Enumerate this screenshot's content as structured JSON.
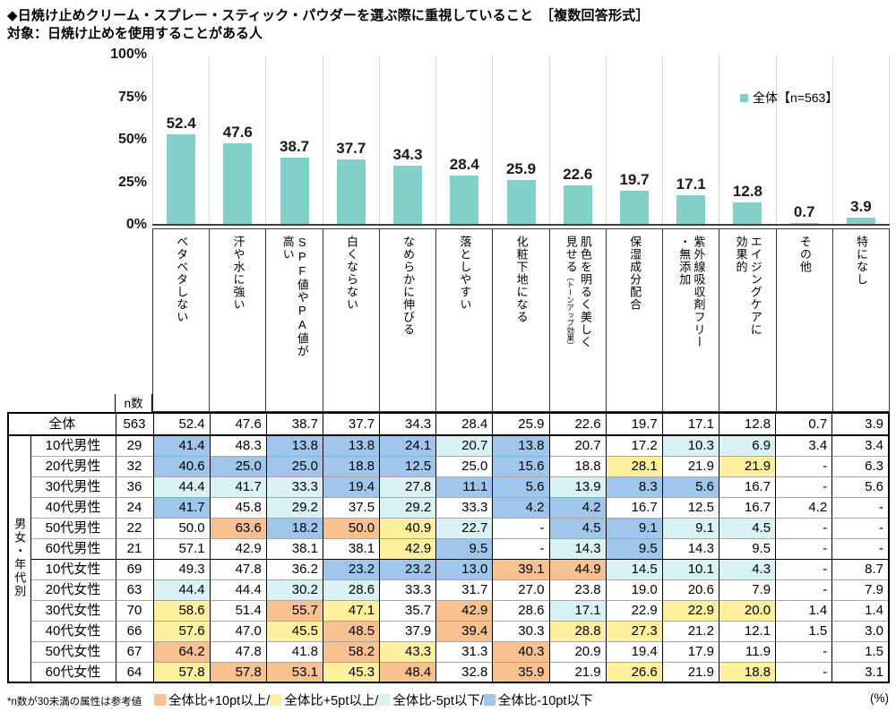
{
  "title": "◆日焼け止めクリーム・スプレー・スティック・パウダーを選ぶ際に重視していること　［複数回答形式］",
  "subtitle": "対象：日焼け止めを使用することがある人",
  "chart_data": {
    "type": "bar",
    "legend": {
      "label": "全体【n=563】",
      "color": "#82D1C8"
    },
    "bar_color": "#82D1C8",
    "grid_color": "#D9D9D9",
    "ylim": [
      0,
      100
    ],
    "yticks": [
      "100%",
      "75%",
      "50%",
      "25%",
      "0%"
    ],
    "categories": [
      {
        "label": "ベタベタしない",
        "sub": ""
      },
      {
        "label": "汗や水に強い",
        "sub": ""
      },
      {
        "label": "SPF値やPA値が\n高い",
        "sub": ""
      },
      {
        "label": "白くならない",
        "sub": ""
      },
      {
        "label": "なめらかに伸びる",
        "sub": ""
      },
      {
        "label": "落としやすい",
        "sub": ""
      },
      {
        "label": "化粧下地になる",
        "sub": ""
      },
      {
        "label": "肌色を明るく美しく\n見せる",
        "sub": "（トーンアップ効果）"
      },
      {
        "label": "保湿成分配合",
        "sub": ""
      },
      {
        "label": "紫外線吸収剤フリー\n・無添加",
        "sub": ""
      },
      {
        "label": "エイジングケアに\n効果的",
        "sub": ""
      },
      {
        "label": "その他",
        "sub": ""
      },
      {
        "label": "特になし",
        "sub": ""
      }
    ],
    "values": [
      52.4,
      47.6,
      38.7,
      37.7,
      34.3,
      28.4,
      25.9,
      22.6,
      19.7,
      17.1,
      12.8,
      0.7,
      3.9
    ],
    "value_labels": [
      "52.4",
      "47.6",
      "38.7",
      "37.7",
      "34.3",
      "28.4",
      "25.9",
      "22.6",
      "19.7",
      "17.1",
      "12.8",
      "0.7",
      "3.9"
    ]
  },
  "table": {
    "n_header": "n数",
    "group_label": "男女・年代別",
    "overall_row": {
      "label": "全体",
      "n": "563",
      "values": [
        "52.4",
        "47.6",
        "38.7",
        "37.7",
        "34.3",
        "28.4",
        "25.9",
        "22.6",
        "19.7",
        "17.1",
        "12.8",
        "0.7",
        "3.9"
      ]
    },
    "rows": [
      {
        "label": "10代男性",
        "n": "29",
        "values": [
          "41.4",
          "48.3",
          "13.8",
          "13.8",
          "24.1",
          "20.7",
          "13.8",
          "20.7",
          "17.2",
          "10.3",
          "6.9",
          "3.4",
          "3.4"
        ]
      },
      {
        "label": "20代男性",
        "n": "32",
        "values": [
          "40.6",
          "25.0",
          "25.0",
          "18.8",
          "12.5",
          "25.0",
          "15.6",
          "18.8",
          "28.1",
          "21.9",
          "21.9",
          "-",
          "6.3"
        ]
      },
      {
        "label": "30代男性",
        "n": "36",
        "values": [
          "44.4",
          "41.7",
          "33.3",
          "19.4",
          "27.8",
          "11.1",
          "5.6",
          "13.9",
          "8.3",
          "5.6",
          "16.7",
          "-",
          "5.6"
        ]
      },
      {
        "label": "40代男性",
        "n": "24",
        "values": [
          "41.7",
          "45.8",
          "29.2",
          "37.5",
          "29.2",
          "33.3",
          "4.2",
          "4.2",
          "16.7",
          "12.5",
          "16.7",
          "4.2",
          "-"
        ]
      },
      {
        "label": "50代男性",
        "n": "22",
        "values": [
          "50.0",
          "63.6",
          "18.2",
          "50.0",
          "40.9",
          "22.7",
          "-",
          "4.5",
          "9.1",
          "9.1",
          "4.5",
          "-",
          "-"
        ]
      },
      {
        "label": "60代男性",
        "n": "21",
        "values": [
          "57.1",
          "42.9",
          "38.1",
          "38.1",
          "42.9",
          "9.5",
          "-",
          "14.3",
          "9.5",
          "14.3",
          "9.5",
          "-",
          "-"
        ]
      },
      {
        "label": "10代女性",
        "n": "69",
        "values": [
          "49.3",
          "47.8",
          "36.2",
          "23.2",
          "23.2",
          "13.0",
          "39.1",
          "44.9",
          "14.5",
          "10.1",
          "4.3",
          "-",
          "8.7"
        ]
      },
      {
        "label": "20代女性",
        "n": "63",
        "values": [
          "44.4",
          "44.4",
          "30.2",
          "28.6",
          "33.3",
          "31.7",
          "27.0",
          "23.8",
          "19.0",
          "20.6",
          "7.9",
          "-",
          "7.9"
        ]
      },
      {
        "label": "30代女性",
        "n": "70",
        "values": [
          "58.6",
          "51.4",
          "55.7",
          "47.1",
          "35.7",
          "42.9",
          "28.6",
          "17.1",
          "22.9",
          "22.9",
          "20.0",
          "1.4",
          "1.4"
        ]
      },
      {
        "label": "40代女性",
        "n": "66",
        "values": [
          "57.6",
          "47.0",
          "45.5",
          "48.5",
          "37.9",
          "39.4",
          "30.3",
          "28.8",
          "27.3",
          "21.2",
          "12.1",
          "1.5",
          "3.0"
        ]
      },
      {
        "label": "50代女性",
        "n": "67",
        "values": [
          "64.2",
          "47.8",
          "41.8",
          "58.2",
          "43.3",
          "31.3",
          "40.3",
          "20.9",
          "19.4",
          "17.9",
          "11.9",
          "-",
          "1.5"
        ]
      },
      {
        "label": "60代女性",
        "n": "64",
        "values": [
          "57.8",
          "57.8",
          "53.1",
          "45.3",
          "48.4",
          "32.8",
          "35.9",
          "21.9",
          "26.6",
          "21.9",
          "18.8",
          "-",
          "3.1"
        ]
      }
    ]
  },
  "legend_rules": [
    {
      "label": "全体比+10pt以上/",
      "color": "#F8C191",
      "threshold": 10
    },
    {
      "label": "全体比+5pt以上/",
      "color": "#FFF0A0",
      "threshold": 5
    },
    {
      "label": "全体比-5pt以下/",
      "color": "#D9F2F6",
      "threshold": -5
    },
    {
      "label": "全体比-10pt以下",
      "color": "#A0C6EC",
      "threshold": -10
    }
  ],
  "footnote": "*n数が30未満の属性は参考値",
  "percent_note": "(%)"
}
